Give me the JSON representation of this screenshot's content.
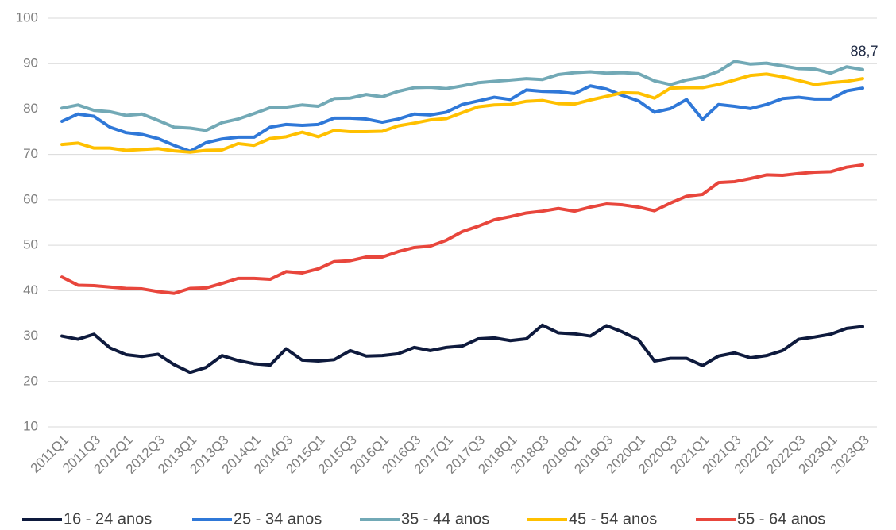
{
  "chart_data": {
    "type": "line",
    "categories": [
      "2011Q1",
      null,
      "2011Q3",
      null,
      "2012Q1",
      null,
      "2012Q3",
      null,
      "2013Q1",
      null,
      "2013Q3",
      null,
      "2014Q1",
      null,
      "2014Q3",
      null,
      "2015Q1",
      null,
      "2015Q3",
      null,
      "2016Q1",
      null,
      "2016Q3",
      null,
      "2017Q1",
      null,
      "2017Q3",
      null,
      "2018Q1",
      null,
      "2018Q3",
      null,
      "2019Q1",
      null,
      "2019Q3",
      null,
      "2020Q1",
      null,
      "2020Q3",
      null,
      "2021Q1",
      null,
      "2021Q3",
      null,
      "2022Q1",
      null,
      "2022Q3",
      null,
      "2023Q1",
      null,
      "2023Q3"
    ],
    "series": [
      {
        "name": "16 - 24 anos",
        "color": "#0e1a3d",
        "values": [
          30,
          29.3,
          30.4,
          27.4,
          25.9,
          25.5,
          26,
          23.7,
          22,
          23.1,
          25.7,
          24.6,
          23.9,
          23.6,
          27.2,
          24.7,
          24.5,
          24.8,
          26.8,
          25.6,
          25.7,
          26.1,
          27.5,
          26.8,
          27.5,
          27.8,
          29.4,
          29.6,
          29,
          29.4,
          32.4,
          30.7,
          30.5,
          30,
          32.3,
          30.9,
          29.2,
          24.5,
          25.1,
          25.1,
          23.5,
          25.6,
          26.3,
          25.2,
          25.7,
          26.8,
          29.3,
          29.8,
          30.4,
          31.7,
          32.1
        ]
      },
      {
        "name": "25 - 34 anos",
        "color": "#2f78d8",
        "values": [
          77.3,
          78.9,
          78.4,
          76,
          74.8,
          74.4,
          73.5,
          72,
          70.7,
          72.6,
          73.4,
          73.8,
          73.8,
          76,
          76.6,
          76.4,
          76.6,
          78,
          78,
          77.8,
          77.1,
          77.8,
          78.9,
          78.7,
          79.3,
          81,
          81.8,
          82.6,
          82.1,
          84.2,
          83.9,
          83.8,
          83.4,
          85.1,
          84.4,
          83,
          81.8,
          79.3,
          80.1,
          82.1,
          77.7,
          81,
          80.6,
          80.1,
          81,
          82.3,
          82.6,
          82.2,
          82.2,
          84,
          84.6
        ]
      },
      {
        "name": "35 - 44 anos",
        "color": "#72a9b6",
        "values": [
          80.2,
          80.9,
          79.7,
          79.4,
          78.6,
          78.9,
          77.5,
          76,
          75.8,
          75.3,
          77,
          77.8,
          79,
          80.3,
          80.4,
          80.9,
          80.6,
          82.3,
          82.4,
          83.2,
          82.7,
          83.9,
          84.7,
          84.8,
          84.5,
          85.1,
          85.8,
          86.1,
          86.4,
          86.7,
          86.5,
          87.6,
          88,
          88.2,
          87.9,
          88,
          87.8,
          86.2,
          85.4,
          86.4,
          87,
          88.3,
          90.5,
          89.9,
          90.1,
          89.5,
          88.9,
          88.8,
          87.9,
          89.3,
          88.7
        ],
        "value_labels": [
          null,
          null,
          null,
          null,
          null,
          null,
          null,
          null,
          null,
          null,
          null,
          null,
          null,
          null,
          null,
          null,
          null,
          null,
          null,
          null,
          null,
          null,
          null,
          null,
          null,
          null,
          null,
          null,
          null,
          null,
          null,
          null,
          null,
          null,
          null,
          null,
          null,
          null,
          null,
          null,
          null,
          null,
          null,
          null,
          null,
          null,
          null,
          null,
          null,
          null,
          "88,7"
        ]
      },
      {
        "name": "45 - 54 anos",
        "color": "#ffc000",
        "values": [
          72.2,
          72.5,
          71.4,
          71.4,
          70.9,
          71.1,
          71.3,
          70.8,
          70.5,
          70.9,
          71,
          72.4,
          72,
          73.5,
          73.9,
          74.9,
          73.9,
          75.3,
          75,
          75,
          75.1,
          76.3,
          76.9,
          77.6,
          77.9,
          79.2,
          80.5,
          80.9,
          81,
          81.7,
          81.9,
          81.2,
          81.1,
          82,
          82.8,
          83.6,
          83.5,
          82.4,
          84.6,
          84.7,
          84.7,
          85.4,
          86.4,
          87.4,
          87.7,
          87.1,
          86.3,
          85.4,
          85.8,
          86.1,
          86.7
        ]
      },
      {
        "name": "55 - 64 anos",
        "color": "#e8463c",
        "values": [
          43,
          41.2,
          41.1,
          40.8,
          40.5,
          40.4,
          39.8,
          39.4,
          40.5,
          40.6,
          41.6,
          42.7,
          42.7,
          42.5,
          44.2,
          43.9,
          44.8,
          46.4,
          46.6,
          47.4,
          47.4,
          48.6,
          49.5,
          49.8,
          51.1,
          53,
          54.2,
          55.6,
          56.3,
          57.1,
          57.5,
          58.1,
          57.5,
          58.4,
          59.1,
          58.9,
          58.4,
          57.6,
          59.3,
          60.8,
          61.2,
          63.8,
          64,
          64.7,
          65.5,
          65.4,
          65.8,
          66.1,
          66.2,
          67.2,
          67.7
        ]
      }
    ],
    "ylim": [
      10,
      100
    ],
    "yticks": [
      10,
      20,
      30,
      40,
      50,
      60,
      70,
      80,
      90,
      100
    ],
    "grid": true,
    "legend": "bottom"
  }
}
